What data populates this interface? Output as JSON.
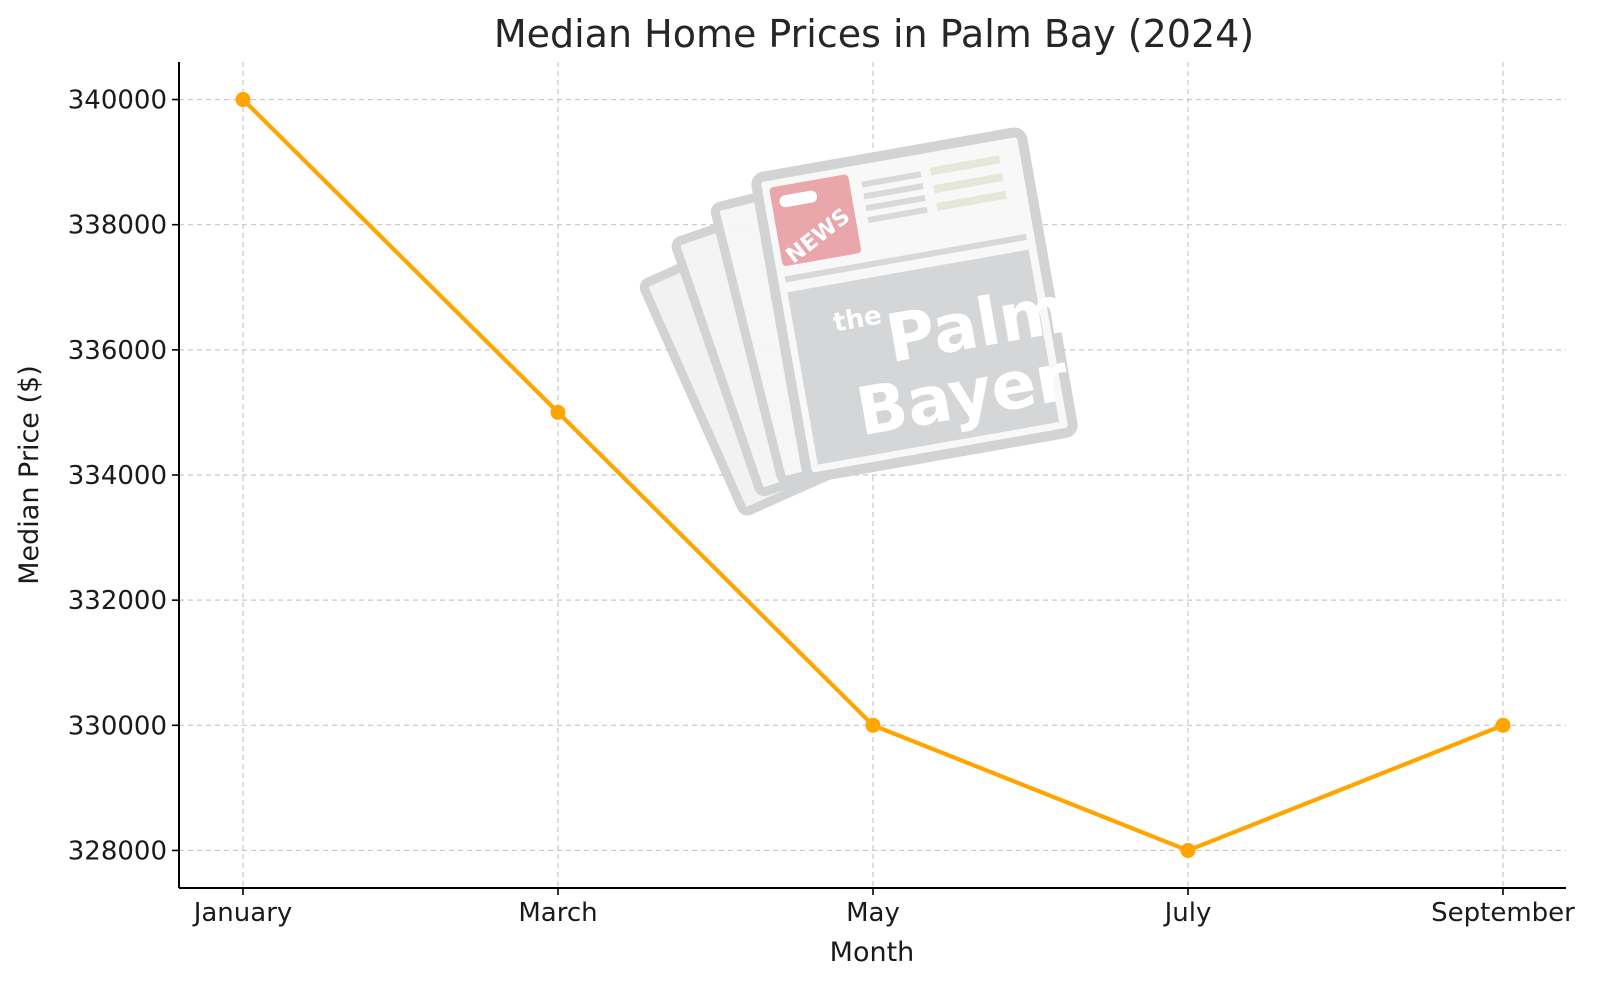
{
  "chart_data": {
    "type": "line",
    "title": "Median Home Prices in Palm Bay (2024)",
    "xlabel": "Month",
    "ylabel": "Median Price ($)",
    "categories": [
      "January",
      "March",
      "May",
      "July",
      "September"
    ],
    "series": [
      {
        "values": [
          340000,
          335000,
          330000,
          328000,
          330000
        ],
        "color": "#ffa500"
      }
    ],
    "yticks": [
      "328000",
      "330000",
      "332000",
      "334000",
      "336000",
      "338000",
      "340000"
    ],
    "ytick_values": [
      328000,
      330000,
      332000,
      334000,
      336000,
      338000,
      340000
    ],
    "ylim": [
      327400,
      340600
    ],
    "grid": true,
    "marker": "circle"
  },
  "watermark": {
    "badge_text": "NEWS",
    "brand_the": "the",
    "brand_line1": "Palm",
    "brand_line2": "Bayer",
    "badge_color": "#e8a3a8",
    "paper_color": "#d2d4d6"
  }
}
